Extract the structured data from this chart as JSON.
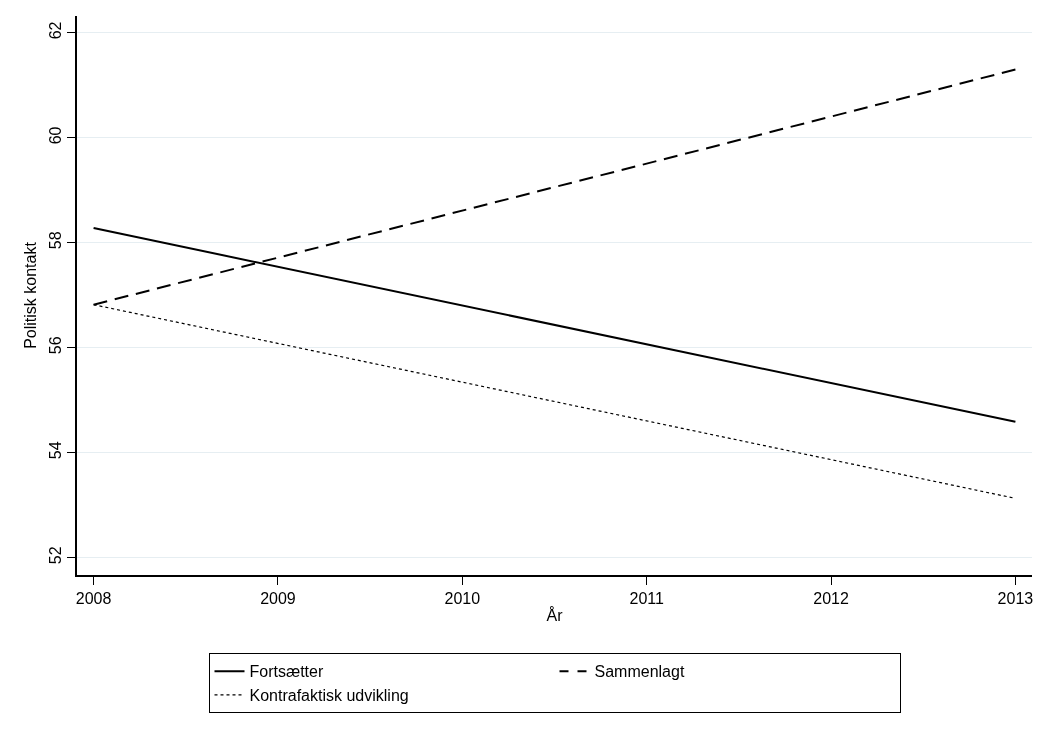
{
  "chart_data": {
    "type": "line",
    "xlabel": "År",
    "ylabel": "Politisk kontakt",
    "x": [
      2008,
      2013
    ],
    "series": [
      {
        "name": "Fortsætter",
        "color": "#000000",
        "line_style": "solid",
        "values": [
          58.28,
          54.59
        ]
      },
      {
        "name": "Sammenlagt",
        "color": "#000000",
        "line_style": "dashed",
        "values": [
          56.82,
          61.3
        ]
      },
      {
        "name": "Kontrafaktisk udvikling",
        "color": "#000000",
        "line_style": "dotted",
        "values": [
          56.82,
          53.13
        ]
      }
    ],
    "xlim": [
      2007.91,
      2013.09
    ],
    "xticks": [
      2008,
      2009,
      2010,
      2011,
      2012,
      2013
    ],
    "ylim": [
      51.67,
      62.32
    ],
    "yticks": [
      52,
      54,
      56,
      58,
      60,
      62
    ],
    "grid": "y",
    "legend": "bottom",
    "marker": "none"
  }
}
